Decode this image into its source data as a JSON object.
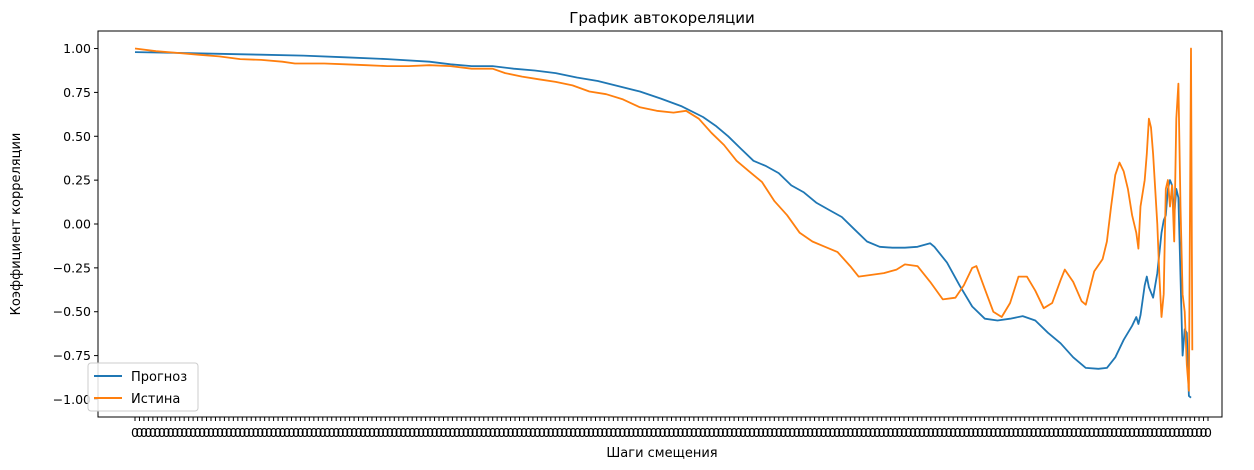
{
  "chart_data": {
    "type": "line",
    "title": "График автокореляции",
    "xlabel": "Шаги смещения",
    "ylabel": "Коэффициент корреляции",
    "xlim": [
      -2,
      246
    ],
    "ylim": [
      -1.1,
      1.1
    ],
    "yticks": [
      "1.00",
      "0.75",
      "0.50",
      "0.25",
      "0.00",
      "−0.25",
      "−0.50",
      "−0.75",
      "−1.00"
    ],
    "ytick_values": [
      1.0,
      0.75,
      0.5,
      0.25,
      0.0,
      -0.25,
      -0.5,
      -0.75,
      -1.0
    ],
    "x_tick_count": 241,
    "x_tick_label_text": "0",
    "grid": false,
    "legend_position": "lower-left",
    "series": [
      {
        "name": "Прогноз",
        "color": "#1f77b4",
        "points": [
          [
            0,
            0.98
          ],
          [
            10,
            0.975
          ],
          [
            20,
            0.97
          ],
          [
            30,
            0.965
          ],
          [
            40,
            0.96
          ],
          [
            50,
            0.95
          ],
          [
            60,
            0.94
          ],
          [
            70,
            0.925
          ],
          [
            75,
            0.91
          ],
          [
            80,
            0.9
          ],
          [
            85,
            0.9
          ],
          [
            90,
            0.885
          ],
          [
            95,
            0.875
          ],
          [
            100,
            0.86
          ],
          [
            105,
            0.835
          ],
          [
            110,
            0.815
          ],
          [
            115,
            0.785
          ],
          [
            120,
            0.755
          ],
          [
            125,
            0.715
          ],
          [
            130,
            0.67
          ],
          [
            135,
            0.61
          ],
          [
            138,
            0.56
          ],
          [
            141,
            0.5
          ],
          [
            144,
            0.43
          ],
          [
            147,
            0.36
          ],
          [
            150,
            0.33
          ],
          [
            153,
            0.29
          ],
          [
            156,
            0.22
          ],
          [
            159,
            0.18
          ],
          [
            162,
            0.12
          ],
          [
            165,
            0.08
          ],
          [
            168,
            0.04
          ],
          [
            171,
            -0.03
          ],
          [
            174,
            -0.1
          ],
          [
            177,
            -0.13
          ],
          [
            180,
            -0.135
          ],
          [
            183,
            -0.135
          ],
          [
            186,
            -0.13
          ],
          [
            189,
            -0.11
          ],
          [
            190,
            -0.13
          ],
          [
            193,
            -0.22
          ],
          [
            196,
            -0.35
          ],
          [
            199,
            -0.47
          ],
          [
            202,
            -0.54
          ],
          [
            205,
            -0.55
          ],
          [
            208,
            -0.54
          ],
          [
            211,
            -0.525
          ],
          [
            214,
            -0.55
          ],
          [
            217,
            -0.62
          ],
          [
            220,
            -0.68
          ],
          [
            223,
            -0.76
          ],
          [
            226,
            -0.82
          ],
          [
            229,
            -0.825
          ],
          [
            231,
            -0.82
          ],
          [
            233,
            -0.76
          ],
          [
            235,
            -0.66
          ],
          [
            237,
            -0.58
          ],
          [
            238,
            -0.53
          ],
          [
            238.5,
            -0.57
          ],
          [
            239,
            -0.52
          ],
          [
            240,
            -0.35
          ],
          [
            240.5,
            -0.3
          ],
          [
            241,
            -0.36
          ],
          [
            242,
            -0.42
          ],
          [
            243,
            -0.28
          ],
          [
            244,
            -0.05
          ],
          [
            244.5,
            0.02
          ],
          [
            245,
            0.05
          ],
          [
            245.5,
            0.2
          ],
          [
            246,
            0.25
          ],
          [
            246.5,
            0.22
          ],
          [
            247,
            0.05
          ],
          [
            247.5,
            0.2
          ],
          [
            248,
            0.15
          ],
          [
            248.5,
            -0.3
          ],
          [
            249,
            -0.75
          ],
          [
            249.5,
            -0.6
          ],
          [
            250,
            -0.62
          ],
          [
            250.5,
            -0.98
          ],
          [
            251,
            -0.99
          ]
        ]
      },
      {
        "name": "Истина",
        "color": "#ff7f0e",
        "points": [
          [
            0,
            1.0
          ],
          [
            5,
            0.985
          ],
          [
            10,
            0.975
          ],
          [
            15,
            0.965
          ],
          [
            20,
            0.955
          ],
          [
            25,
            0.94
          ],
          [
            30,
            0.935
          ],
          [
            35,
            0.925
          ],
          [
            38,
            0.915
          ],
          [
            45,
            0.915
          ],
          [
            50,
            0.91
          ],
          [
            55,
            0.905
          ],
          [
            60,
            0.9
          ],
          [
            65,
            0.9
          ],
          [
            70,
            0.905
          ],
          [
            75,
            0.9
          ],
          [
            80,
            0.885
          ],
          [
            85,
            0.885
          ],
          [
            88,
            0.86
          ],
          [
            92,
            0.84
          ],
          [
            96,
            0.825
          ],
          [
            100,
            0.81
          ],
          [
            104,
            0.79
          ],
          [
            108,
            0.755
          ],
          [
            112,
            0.74
          ],
          [
            116,
            0.71
          ],
          [
            120,
            0.665
          ],
          [
            124,
            0.645
          ],
          [
            128,
            0.635
          ],
          [
            131,
            0.645
          ],
          [
            134,
            0.6
          ],
          [
            137,
            0.52
          ],
          [
            140,
            0.45
          ],
          [
            143,
            0.36
          ],
          [
            146,
            0.3
          ],
          [
            149,
            0.24
          ],
          [
            152,
            0.13
          ],
          [
            155,
            0.05
          ],
          [
            158,
            -0.05
          ],
          [
            161,
            -0.1
          ],
          [
            164,
            -0.13
          ],
          [
            167,
            -0.16
          ],
          [
            170,
            -0.24
          ],
          [
            172,
            -0.3
          ],
          [
            175,
            -0.29
          ],
          [
            178,
            -0.28
          ],
          [
            181,
            -0.26
          ],
          [
            183,
            -0.23
          ],
          [
            186,
            -0.24
          ],
          [
            189,
            -0.33
          ],
          [
            192,
            -0.43
          ],
          [
            195,
            -0.42
          ],
          [
            197,
            -0.35
          ],
          [
            199,
            -0.25
          ],
          [
            200,
            -0.24
          ],
          [
            202,
            -0.37
          ],
          [
            204,
            -0.5
          ],
          [
            206,
            -0.53
          ],
          [
            208,
            -0.45
          ],
          [
            210,
            -0.3
          ],
          [
            212,
            -0.3
          ],
          [
            214,
            -0.38
          ],
          [
            216,
            -0.48
          ],
          [
            218,
            -0.45
          ],
          [
            220,
            -0.32
          ],
          [
            221,
            -0.26
          ],
          [
            223,
            -0.33
          ],
          [
            225,
            -0.44
          ],
          [
            226,
            -0.46
          ],
          [
            228,
            -0.27
          ],
          [
            230,
            -0.2
          ],
          [
            231,
            -0.1
          ],
          [
            232,
            0.1
          ],
          [
            233,
            0.28
          ],
          [
            234,
            0.35
          ],
          [
            235,
            0.3
          ],
          [
            236,
            0.2
          ],
          [
            237,
            0.05
          ],
          [
            238,
            -0.05
          ],
          [
            238.5,
            -0.14
          ],
          [
            239,
            0.1
          ],
          [
            240,
            0.25
          ],
          [
            240.5,
            0.4
          ],
          [
            241,
            0.6
          ],
          [
            241.5,
            0.55
          ],
          [
            242,
            0.4
          ],
          [
            242.5,
            0.2
          ],
          [
            243,
            0.0
          ],
          [
            243.5,
            -0.3
          ],
          [
            244,
            -0.53
          ],
          [
            244.5,
            -0.4
          ],
          [
            245,
            0.2
          ],
          [
            245.5,
            0.25
          ],
          [
            246,
            0.1
          ],
          [
            246.5,
            0.22
          ],
          [
            247,
            -0.1
          ],
          [
            247.5,
            0.6
          ],
          [
            248,
            0.8
          ],
          [
            248.5,
            0.1
          ],
          [
            249,
            -0.4
          ],
          [
            249.5,
            -0.5
          ],
          [
            250,
            -0.8
          ],
          [
            250.5,
            -0.95
          ],
          [
            251,
            1.0
          ],
          [
            251.3,
            -0.72
          ]
        ]
      }
    ]
  }
}
